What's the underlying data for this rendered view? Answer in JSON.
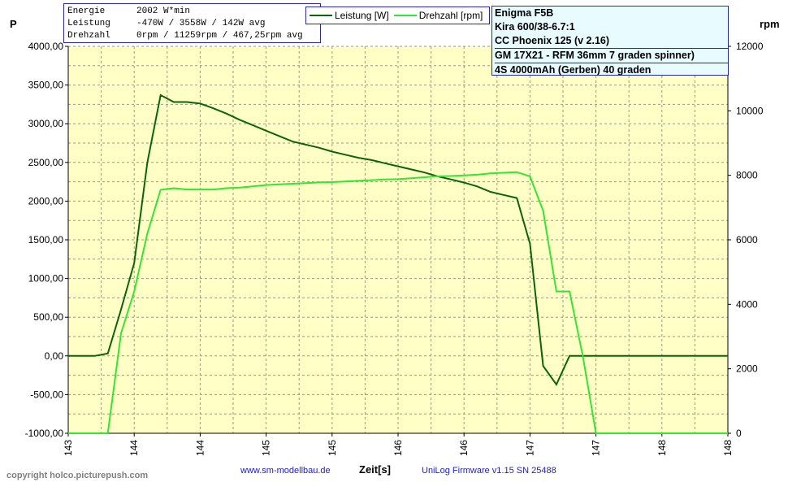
{
  "stats": {
    "rows": [
      {
        "key": "Energie",
        "value": "2002 W*min"
      },
      {
        "key": "Leistung",
        "value": "-470W / 3558W / 142W avg"
      },
      {
        "key": "Drehzahl",
        "value": "0rpm / 11259rpm / 467,25rpm avg"
      }
    ]
  },
  "legend": {
    "items": [
      {
        "label": "Leistung [W]",
        "color": "#0a640a"
      },
      {
        "label": "Drehzahl [rpm]",
        "color": "#33e633"
      }
    ]
  },
  "info": {
    "lines": [
      "Enigma F5B",
      "Kira 600/38-6.7:1",
      "CC Phoenix 125 (v 2.16)",
      "GM 17X21 - RFM 36mm 7 graden spinner)",
      "4S 4000mAh (Gerben) 40 graden"
    ]
  },
  "footer": {
    "copyright": "copyright holco.picturepush.com",
    "website": "www.sm-modellbau.de",
    "firmware": "UniLog Firmware v1.15 SN 25488"
  },
  "chart_data": {
    "type": "line",
    "xlabel": "Zeit[s]",
    "ylabel": "P",
    "y2label": "rpm",
    "plot_bg": "#ffffc6",
    "grid": true,
    "ylim": [
      -1000,
      4000
    ],
    "y2lim": [
      0,
      12000
    ],
    "yticks": [
      "4000,00",
      "3500,00",
      "3000,00",
      "2500,00",
      "2000,00",
      "1500,00",
      "1000,00",
      "500,00",
      "0,00",
      "-500,00",
      "-1000,00"
    ],
    "y2ticks": [
      "12000",
      "10000",
      "8000",
      "6000",
      "4000",
      "2000",
      "0"
    ],
    "xticks": [
      "143",
      "144",
      "144",
      "145",
      "145",
      "146",
      "146",
      "147",
      "147",
      "148",
      "148"
    ],
    "x": [
      0,
      0.5,
      1,
      1.5,
      2,
      2.5,
      3,
      3.5,
      4,
      4.5,
      5,
      5.5,
      6,
      6.5,
      7,
      7.5,
      8,
      8.5,
      9,
      9.5,
      10,
      10.5,
      11,
      11.5,
      12,
      12.5,
      13,
      13.5,
      14,
      14.5,
      15,
      15.5,
      16,
      16.5,
      17,
      17.5,
      18,
      18.5,
      19,
      19.5,
      20,
      20.5,
      21,
      21.5,
      22,
      22.5,
      23,
      23.5,
      24,
      24.5,
      25
    ],
    "series": [
      {
        "name": "Leistung [W]",
        "axis": "left",
        "color": "#0a640a",
        "values": [
          0,
          0,
          0,
          30,
          600,
          1200,
          2500,
          3370,
          3280,
          3280,
          3260,
          3200,
          3130,
          3050,
          2980,
          2910,
          2840,
          2770,
          2730,
          2690,
          2640,
          2600,
          2560,
          2530,
          2490,
          2450,
          2410,
          2370,
          2320,
          2280,
          2240,
          2190,
          2120,
          2080,
          2040,
          1450,
          -130,
          -370,
          0,
          0,
          0,
          0,
          0,
          0,
          0,
          0,
          0,
          0,
          0,
          0,
          0
        ]
      },
      {
        "name": "Drehzahl [rpm]",
        "axis": "right",
        "color": "#33e633",
        "values": [
          0,
          0,
          0,
          0,
          3100,
          4400,
          6200,
          7550,
          7600,
          7560,
          7560,
          7560,
          7600,
          7620,
          7660,
          7700,
          7720,
          7740,
          7760,
          7780,
          7790,
          7810,
          7830,
          7850,
          7870,
          7880,
          7910,
          7940,
          7970,
          7980,
          8000,
          8020,
          8060,
          8080,
          8100,
          7970,
          6900,
          4400,
          4400,
          2400,
          0,
          0,
          0,
          0,
          0,
          0,
          0,
          0,
          0,
          0,
          0
        ]
      }
    ]
  }
}
